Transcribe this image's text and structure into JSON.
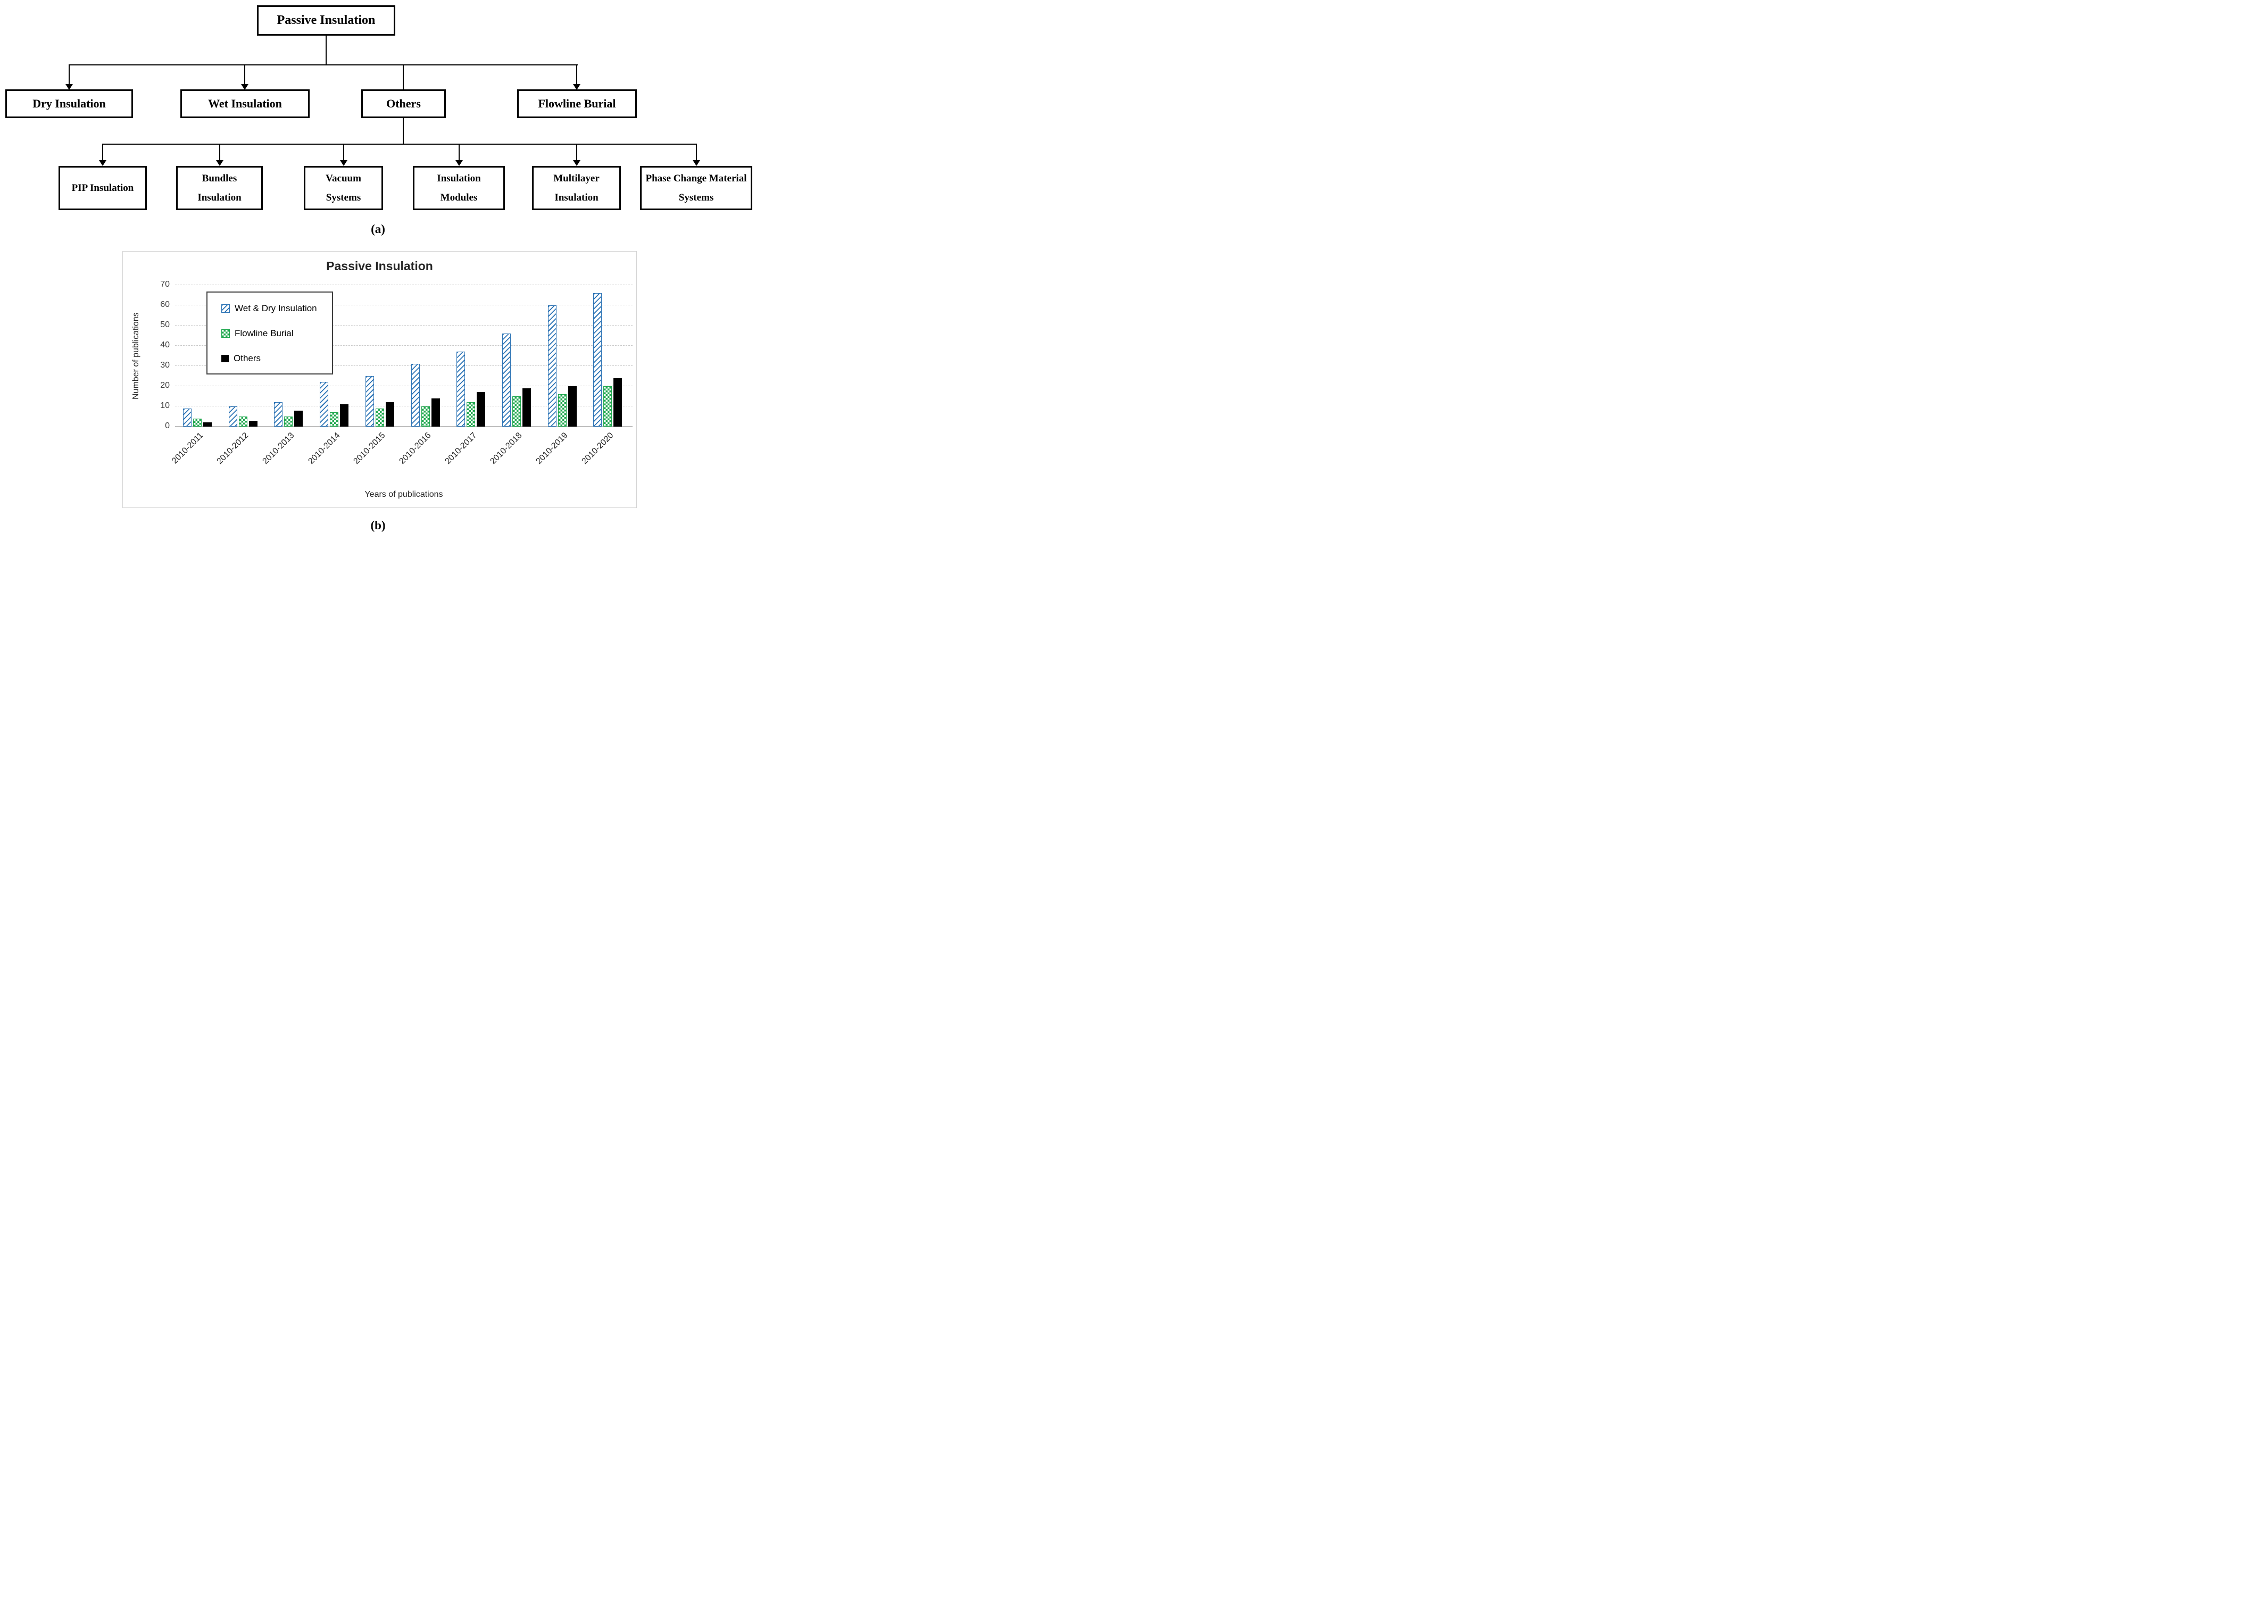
{
  "figure": {
    "panel_a_label": "(a)",
    "panel_b_label": "(b)"
  },
  "flowchart": {
    "root": "Passive Insulation",
    "level1": [
      "Dry Insulation",
      "Wet Insulation",
      "Others",
      "Flowline Burial"
    ],
    "level2_parent": "Others",
    "level2": [
      "PIP Insulation",
      "Bundles Insulation",
      "Vacuum Systems",
      "Insulation Modules",
      "Multilayer Insulation",
      "Phase Change Material Systems"
    ]
  },
  "chart_data": {
    "type": "bar",
    "title": "Passive Insulation",
    "xlabel": "Years of publications",
    "ylabel": "Number of publications",
    "categories": [
      "2010-2011",
      "2010-2012",
      "2010-2013",
      "2010-2014",
      "2010-2015",
      "2010-2016",
      "2010-2017",
      "2010-2018",
      "2010-2019",
      "2010-2020"
    ],
    "series": [
      {
        "name": "Wet & Dry Insulation",
        "pattern": "diagonal-hatch",
        "color": "#2E75B6",
        "values": [
          9,
          10,
          12,
          22,
          25,
          31,
          37,
          46,
          60,
          66
        ]
      },
      {
        "name": "Flowline Burial",
        "pattern": "checker",
        "color": "#21A84F",
        "values": [
          4,
          5,
          5,
          7,
          9,
          10,
          12,
          15,
          16,
          20
        ]
      },
      {
        "name": "Others",
        "pattern": "solid",
        "color": "#000000",
        "values": [
          2,
          3,
          8,
          11,
          12,
          14,
          17,
          19,
          20,
          24
        ]
      }
    ],
    "ylim": [
      0,
      70
    ],
    "ytick_step": 10,
    "yticks": [
      0,
      10,
      20,
      30,
      40,
      50,
      60,
      70
    ],
    "grid": "dashed-horizontal",
    "legend_position": "top-left"
  }
}
